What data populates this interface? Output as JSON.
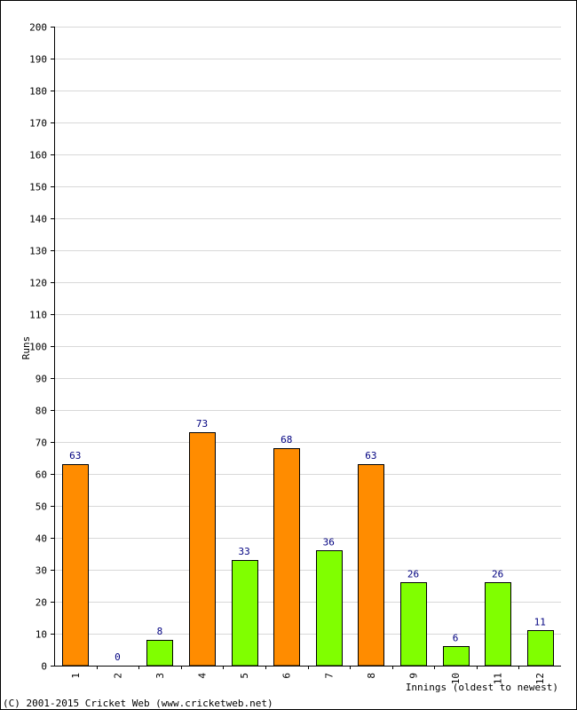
{
  "chart_data": {
    "type": "bar",
    "categories": [
      "1",
      "2",
      "3",
      "4",
      "5",
      "6",
      "7",
      "8",
      "9",
      "10",
      "11",
      "12"
    ],
    "values": [
      63,
      0,
      8,
      73,
      33,
      68,
      36,
      63,
      26,
      6,
      26,
      11
    ],
    "data_labels": [
      "63",
      "0",
      "8",
      "73",
      "33",
      "68",
      "36",
      "63",
      "26",
      "6",
      "26",
      "11"
    ],
    "bar_colors": [
      "#ff8c00",
      "#ff8c00",
      "#80ff00",
      "#ff8c00",
      "#80ff00",
      "#ff8c00",
      "#80ff00",
      "#ff8c00",
      "#80ff00",
      "#80ff00",
      "#80ff00",
      "#80ff00"
    ],
    "title": "",
    "xlabel": "Innings (oldest to newest)",
    "ylabel": "Runs",
    "ylim": [
      0,
      200
    ],
    "ytick_step": 10,
    "yticks": [
      "0",
      "10",
      "20",
      "30",
      "40",
      "50",
      "60",
      "70",
      "80",
      "90",
      "100",
      "110",
      "120",
      "130",
      "140",
      "150",
      "160",
      "170",
      "180",
      "190",
      "200"
    ],
    "grid": true,
    "legend": "none"
  },
  "footer": {
    "copyright": "(C) 2001-2015 Cricket Web (www.cricketweb.net)"
  },
  "colors": {
    "orange": "#ff8c00",
    "green": "#80ff00",
    "grid": "#d8d8d8",
    "label": "#000080"
  }
}
